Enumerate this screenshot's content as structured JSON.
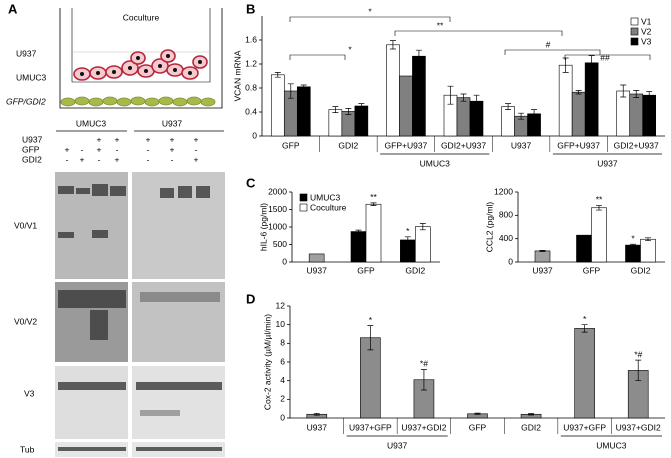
{
  "panel_labels": [
    "A",
    "B",
    "C",
    "D"
  ],
  "panel_a": {
    "diagram_title": "Coculture",
    "cell_labels": [
      "U937",
      "UMUC3",
      "GFP/GDI2"
    ],
    "blot_groups": [
      "UMUC3",
      "U937"
    ],
    "treatments": [
      "U937",
      "GFP",
      "GDI2"
    ],
    "lanes": [
      [
        [
          null,
          null,
          "+",
          "+"
        ],
        [
          "+",
          "-",
          "+",
          "-"
        ],
        [
          "-",
          "+",
          "-",
          "+"
        ]
      ],
      [
        [
          "+",
          "+",
          "+"
        ],
        [
          "-",
          "+",
          "-"
        ],
        [
          "-",
          "-",
          "+"
        ]
      ]
    ],
    "blot_labels": [
      "V0/V1",
      "V0/V2",
      "V3",
      "Tub"
    ]
  },
  "chart_data": [
    {
      "type": "bar",
      "y_label": "VCAN mRNA",
      "categories": [
        "GFP",
        "GDI2",
        "GFP+U937",
        "GDI2+U937",
        "U937",
        "GFP+U937",
        "GDI2+U937"
      ],
      "group_labels": [
        "UMUC3",
        "U937"
      ],
      "series": [
        {
          "name": "V1",
          "color": "#ffffff",
          "values": [
            1.02,
            0.44,
            1.52,
            0.68,
            0.49,
            1.18,
            0.75
          ],
          "errors": [
            0.04,
            0.05,
            0.07,
            0.15,
            0.05,
            0.12,
            0.1
          ]
        },
        {
          "name": "V2",
          "color": "#808080",
          "values": [
            0.75,
            0.41,
            1.0,
            0.64,
            0.33,
            0.73,
            0.7
          ],
          "errors": [
            0.12,
            0.05,
            null,
            0.06,
            0.05,
            0.03,
            0.06
          ]
        },
        {
          "name": "V3",
          "color": "#000000",
          "values": [
            0.82,
            0.5,
            1.33,
            0.58,
            0.37,
            1.22,
            0.68
          ],
          "errors": [
            0.03,
            0.04,
            0.1,
            0.1,
            0.07,
            0.12,
            0.06
          ]
        }
      ],
      "ylim": [
        0,
        2
      ],
      "yticks": [
        0,
        0.4,
        0.8,
        1.2,
        1.6
      ],
      "legend": "upper right",
      "annotations": [
        "*",
        "**",
        "*",
        "#",
        "##"
      ]
    },
    {
      "type": "bar",
      "y_label": "hIL-6 (pg/ml)",
      "categories": [
        "U937",
        "GFP",
        "GDI2"
      ],
      "series": [
        {
          "name": "UMUC3",
          "color": "#000000",
          "values": [
            null,
            870,
            630
          ],
          "errors": [
            null,
            40,
            90
          ]
        },
        {
          "name": "Coculture",
          "color": "#ffffff",
          "values": [
            null,
            1650,
            1010
          ],
          "errors": [
            null,
            40,
            90
          ]
        },
        {
          "color": "#a0a0a0",
          "values": [
            230,
            null,
            null
          ],
          "errors": [
            null,
            null,
            null
          ]
        }
      ],
      "ylim": [
        0,
        2000
      ],
      "yticks": [
        0,
        500,
        1000,
        1500,
        2000
      ],
      "legend": "upper left",
      "annotations": [
        "**",
        "*"
      ]
    },
    {
      "type": "bar",
      "y_label": "CCL2 (pg/ml)",
      "categories": [
        "U937",
        "GFP",
        "GDI2"
      ],
      "series": [
        {
          "name": "UMUC3",
          "color": "#000000",
          "values": [
            null,
            460,
            290
          ],
          "errors": [
            null,
            null,
            15
          ]
        },
        {
          "name": "Coculture",
          "color": "#ffffff",
          "values": [
            null,
            930,
            390
          ],
          "errors": [
            null,
            40,
            25
          ]
        },
        {
          "color": "#a0a0a0",
          "values": [
            190,
            null,
            null
          ],
          "errors": [
            10,
            null,
            null
          ]
        }
      ],
      "ylim": [
        0,
        1200
      ],
      "yticks": [
        0,
        400,
        800,
        1200
      ],
      "annotations": [
        "**",
        "*"
      ]
    },
    {
      "type": "bar",
      "y_label": "Cox-2 activity (µM/µl/min)",
      "categories": [
        "U937",
        "U937+GFP",
        "U937+GDI2",
        "GFP",
        "GDI2",
        "U937+GFP",
        "U937+GDI2"
      ],
      "group_labels": [
        "U937",
        "UMUC3"
      ],
      "series": [
        {
          "color": "#8c8c8c",
          "values": [
            0.4,
            8.6,
            4.1,
            0.45,
            0.4,
            9.6,
            5.1
          ],
          "errors": [
            0.1,
            1.3,
            1.1,
            0.08,
            0.08,
            0.4,
            1.1
          ]
        }
      ],
      "ylim": [
        0,
        12
      ],
      "yticks": [
        0,
        2,
        4,
        6,
        8,
        10,
        12
      ],
      "annotations": [
        "*",
        "*#",
        "*",
        "*#"
      ]
    }
  ]
}
